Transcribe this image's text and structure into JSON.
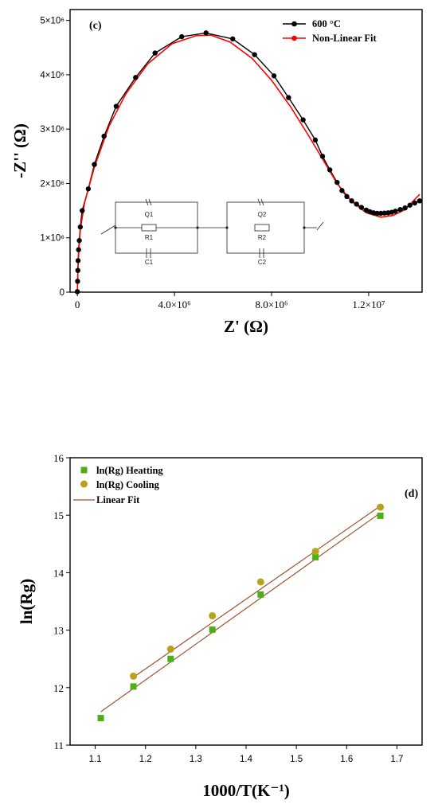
{
  "chart_data": [
    {
      "type": "scatter",
      "panel_label": "(c)",
      "xlabel": "Z' (Ω)",
      "ylabel": "-Z'' (Ω)",
      "xlim": [
        -300000,
        14200000
      ],
      "ylim": [
        0,
        5200000
      ],
      "x_ticks": [
        {
          "value": 0,
          "label": "0"
        },
        {
          "value": 4000000,
          "label": "4.0×10⁶"
        },
        {
          "value": 8000000,
          "label": "8.0×10⁶"
        },
        {
          "value": 12000000,
          "label": "1.2×10⁷"
        }
      ],
      "y_ticks": [
        {
          "value": 0,
          "label": "0"
        },
        {
          "value": 1000000,
          "label": "1×10⁶"
        },
        {
          "value": 2000000,
          "label": "2×10⁶"
        },
        {
          "value": 3000000,
          "label": "3×10⁶"
        },
        {
          "value": 4000000,
          "label": "4×10⁶"
        },
        {
          "value": 5000000,
          "label": "5×10⁶"
        }
      ],
      "legend_position": "top-right",
      "series": [
        {
          "name": "600 °C",
          "color": "#000000",
          "marker": "circle",
          "points": [
            [
              0,
              10000.0
            ],
            [
              10000.0,
              200000.0
            ],
            [
              20000.0,
              400000.0
            ],
            [
              30000.0,
              580000.0
            ],
            [
              50000.0,
              780000.0
            ],
            [
              80000.0,
              950000.0
            ],
            [
              120000.0,
              1200000.0
            ],
            [
              200000.0,
              1500000.0
            ],
            [
              450000.0,
              1900000.0
            ],
            [
              700000.0,
              2350000.0
            ],
            [
              1100000.0,
              2870000.0
            ],
            [
              1600000.0,
              3420000.0
            ],
            [
              2400000.0,
              3950000.0
            ],
            [
              3200000.0,
              4400000.0
            ],
            [
              4300000.0,
              4700000.0
            ],
            [
              5300000.0,
              4770000.0
            ],
            [
              6400000.0,
              4660000.0
            ],
            [
              7300000.0,
              4370000.0
            ],
            [
              8100000.0,
              3980000.0
            ],
            [
              8700000.0,
              3580000.0
            ],
            [
              9300000.0,
              3170000.0
            ],
            [
              9800000.0,
              2800000.0
            ],
            [
              10100000.0,
              2500000.0
            ],
            [
              10400000.0,
              2250000.0
            ],
            [
              10700000.0,
              2020000.0
            ],
            [
              10900000.0,
              1870000.0
            ],
            [
              11100000.0,
              1760000.0
            ],
            [
              11300000.0,
              1680000.0
            ],
            [
              11500000.0,
              1620000.0
            ],
            [
              11700000.0,
              1560000.0
            ],
            [
              11900000.0,
              1510000.0
            ],
            [
              12050000.0,
              1480000.0
            ],
            [
              12200000.0,
              1460000.0
            ],
            [
              12350000.0,
              1450000.0
            ],
            [
              12500000.0,
              1450000.0
            ],
            [
              12650000.0,
              1455000.0
            ],
            [
              12800000.0,
              1460000.0
            ],
            [
              12950000.0,
              1470000.0
            ],
            [
              13100000.0,
              1490000.0
            ],
            [
              13300000.0,
              1520000.0
            ],
            [
              13500000.0,
              1550000.0
            ],
            [
              13700000.0,
              1600000.0
            ],
            [
              13900000.0,
              1640000.0
            ],
            [
              14100000.0,
              1680000.0
            ]
          ]
        },
        {
          "name": "Non-Linear Fit",
          "color": "#ff0000",
          "marker": "circle",
          "points": [
            [
              0,
              0
            ],
            [
              20000.0,
              350000.0
            ],
            [
              50000.0,
              700000.0
            ],
            [
              120000.0,
              1150000.0
            ],
            [
              300000.0,
              1650000.0
            ],
            [
              700000.0,
              2300000.0
            ],
            [
              1300000.0,
              3050000.0
            ],
            [
              2000000.0,
              3650000.0
            ],
            [
              2900000.0,
              4200000.0
            ],
            [
              3900000.0,
              4570000.0
            ],
            [
              4900000.0,
              4720000.0
            ],
            [
              5500000.0,
              4730000.0
            ],
            [
              6300000.0,
              4600000.0
            ],
            [
              7200000.0,
              4300000.0
            ],
            [
              8000000.0,
              3900000.0
            ],
            [
              8800000.0,
              3400000.0
            ],
            [
              9500000.0,
              2900000.0
            ],
            [
              10100000.0,
              2450000.0
            ],
            [
              10700000.0,
              2000000.0
            ],
            [
              11300000.0,
              1670000.0
            ],
            [
              11900000.0,
              1460000.0
            ],
            [
              12500000.0,
              1380000.0
            ],
            [
              13000000.0,
              1410000.0
            ],
            [
              13500000.0,
              1520000.0
            ],
            [
              14100000.0,
              1800000.0
            ]
          ]
        }
      ],
      "inset_circuit": {
        "elements": [
          "Q1",
          "R1",
          "C1",
          "Q2",
          "R2",
          "C2"
        ]
      }
    },
    {
      "type": "scatter",
      "panel_label": "(d)",
      "xlabel": "1000/T(K⁻¹)",
      "ylabel": "ln(Rg)",
      "xlim": [
        1.05,
        1.75
      ],
      "ylim": [
        11,
        16
      ],
      "x_ticks": [
        {
          "value": 1.1,
          "label": "1.1"
        },
        {
          "value": 1.2,
          "label": "1.2"
        },
        {
          "value": 1.3,
          "label": "1.3"
        },
        {
          "value": 1.4,
          "label": "1.4"
        },
        {
          "value": 1.5,
          "label": "1.5"
        },
        {
          "value": 1.6,
          "label": "1.6"
        },
        {
          "value": 1.7,
          "label": "1.7"
        }
      ],
      "y_ticks": [
        {
          "value": 11,
          "label": "11"
        },
        {
          "value": 12,
          "label": "12"
        },
        {
          "value": 13,
          "label": "13"
        },
        {
          "value": 14,
          "label": "14"
        },
        {
          "value": 15,
          "label": "15"
        },
        {
          "value": 16,
          "label": "16"
        }
      ],
      "legend_position": "top-left",
      "series": [
        {
          "name": "ln(Rg) Heatting",
          "color": "#4caf18",
          "marker": "square",
          "x": [
            1.111,
            1.176,
            1.25,
            1.333,
            1.429,
            1.538,
            1.667
          ],
          "y": [
            11.47,
            12.02,
            12.5,
            13.01,
            13.62,
            14.27,
            14.99
          ]
        },
        {
          "name": "ln(Rg) Cooling",
          "color": "#b8a21a",
          "marker": "circle",
          "x": [
            1.176,
            1.25,
            1.333,
            1.429,
            1.538,
            1.667
          ],
          "y": [
            12.2,
            12.67,
            13.25,
            13.84,
            14.37,
            15.14
          ]
        }
      ],
      "fits": [
        {
          "name": "Linear Fit",
          "color": "#a0522d",
          "x": [
            1.111,
            1.667
          ],
          "y": [
            11.58,
            15.04
          ]
        },
        {
          "color": "#a0522d",
          "x": [
            1.176,
            1.667
          ],
          "y": [
            12.18,
            15.16
          ]
        }
      ]
    }
  ]
}
